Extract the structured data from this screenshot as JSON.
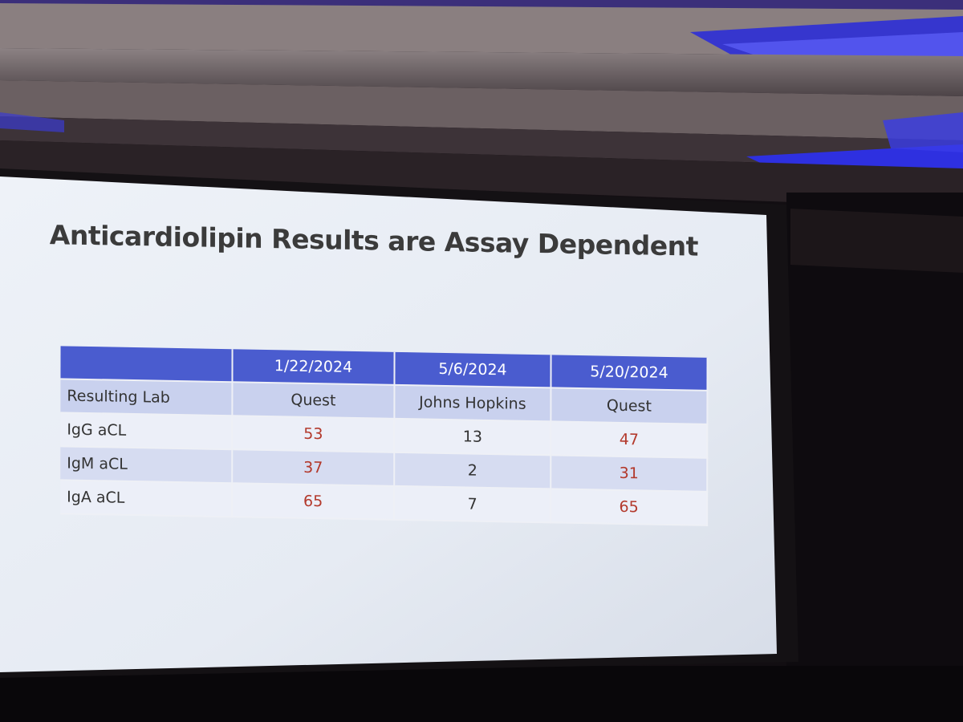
{
  "slide": {
    "title": "Anticardiolipin Results are Assay Dependent"
  },
  "table": {
    "header": [
      "",
      "1/22/2024",
      "5/6/2024",
      "5/20/2024"
    ],
    "lab_row": {
      "label": "Resulting Lab",
      "values": [
        "Quest",
        "Johns Hopkins",
        "Quest"
      ]
    },
    "rows": [
      {
        "label": "IgG aCL",
        "values": [
          "53",
          "13",
          "47"
        ],
        "highlight": [
          true,
          false,
          true
        ]
      },
      {
        "label": "IgM aCL",
        "values": [
          "37",
          "2",
          "31"
        ],
        "highlight": [
          true,
          false,
          true
        ]
      },
      {
        "label": "IgA aCL",
        "values": [
          "65",
          "7",
          "65"
        ],
        "highlight": [
          true,
          false,
          true
        ]
      }
    ]
  },
  "colors": {
    "header_blue": "#4a5ccf",
    "positive_red": "#b3392c",
    "screen_white": "#e9eef6",
    "stage_blue_light": "#3a3bd8"
  }
}
